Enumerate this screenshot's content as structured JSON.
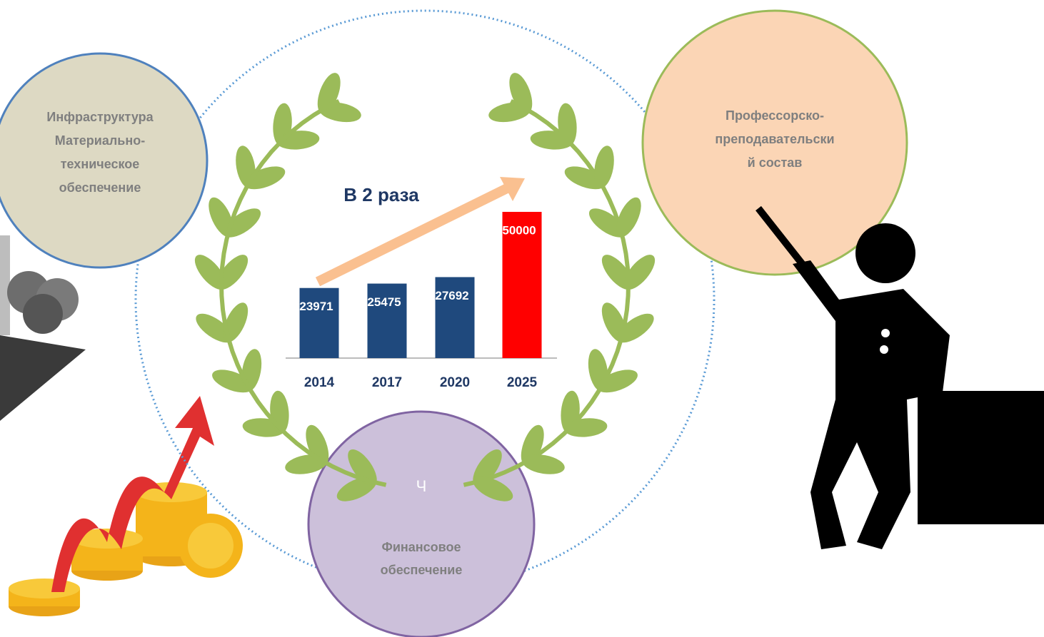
{
  "chart_data": {
    "type": "bar",
    "annotation": "В 2 раза",
    "categories": [
      "2014",
      "2017",
      "2020",
      "2025"
    ],
    "values": [
      23971,
      25475,
      27692,
      50000
    ],
    "colors": [
      "#1f497d",
      "#1f497d",
      "#1f497d",
      "#ff0000"
    ],
    "ylim": [
      0,
      50000
    ]
  },
  "circles": {
    "infrastructure": [
      "Инфраструктура",
      "Материально-",
      "техническое",
      "обеспечение"
    ],
    "staff": [
      "Профессорско-",
      "преподавательски",
      "й состав"
    ],
    "finance": [
      "Финансовое",
      "обеспечение"
    ],
    "finance_mark": "Ч"
  }
}
